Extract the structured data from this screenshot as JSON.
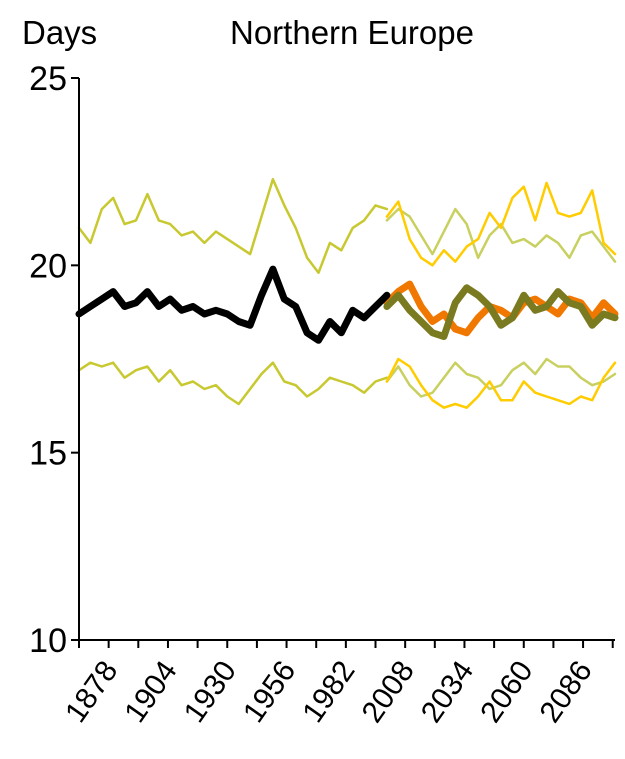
{
  "chart_data": {
    "type": "line",
    "title": "Northern Europe",
    "ylabel": "Days",
    "xlabel": "",
    "ylim": [
      10,
      25
    ],
    "xlim": [
      1865,
      2100
    ],
    "yticks": [
      10,
      15,
      20,
      25
    ],
    "xticks": [
      1878,
      1904,
      1930,
      1956,
      1982,
      2008,
      2034,
      2060,
      2086
    ],
    "grid": false,
    "legend": "none",
    "series": [
      {
        "role": "observed",
        "color": "#000000",
        "x": [
          1865,
          1870,
          1875,
          1880,
          1885,
          1890,
          1895,
          1900,
          1905,
          1910,
          1915,
          1920,
          1925,
          1930,
          1935,
          1940,
          1945,
          1950,
          1955,
          1960,
          1965,
          1970,
          1975,
          1980,
          1985,
          1990,
          1995,
          2000
        ],
        "y": [
          18.7,
          18.9,
          19.1,
          19.3,
          18.9,
          19.0,
          19.3,
          18.9,
          19.1,
          18.8,
          18.9,
          18.7,
          18.8,
          18.7,
          18.5,
          18.4,
          19.2,
          19.9,
          19.1,
          18.9,
          18.2,
          18.0,
          18.5,
          18.2,
          18.8,
          18.6,
          18.9,
          19.2
        ]
      },
      {
        "role": "observed-upper",
        "color": "#c8c830",
        "x": [
          1865,
          1870,
          1875,
          1880,
          1885,
          1890,
          1895,
          1900,
          1905,
          1910,
          1915,
          1920,
          1925,
          1930,
          1935,
          1940,
          1945,
          1950,
          1955,
          1960,
          1965,
          1970,
          1975,
          1980,
          1985,
          1990,
          1995,
          2000
        ],
        "y": [
          21.0,
          20.6,
          21.5,
          21.8,
          21.1,
          21.2,
          21.9,
          21.2,
          21.1,
          20.8,
          20.9,
          20.6,
          20.9,
          20.7,
          20.5,
          20.3,
          21.3,
          22.3,
          21.6,
          21.0,
          20.2,
          19.8,
          20.6,
          20.4,
          21.0,
          21.2,
          21.6,
          21.5
        ]
      },
      {
        "role": "observed-lower",
        "color": "#c8c830",
        "x": [
          1865,
          1870,
          1875,
          1880,
          1885,
          1890,
          1895,
          1900,
          1905,
          1910,
          1915,
          1920,
          1925,
          1930,
          1935,
          1940,
          1945,
          1950,
          1955,
          1960,
          1965,
          1970,
          1975,
          1980,
          1985,
          1990,
          1995,
          2000
        ],
        "y": [
          17.2,
          17.4,
          17.3,
          17.4,
          17.0,
          17.2,
          17.3,
          16.9,
          17.2,
          16.8,
          16.9,
          16.7,
          16.8,
          16.5,
          16.3,
          16.7,
          17.1,
          17.4,
          16.9,
          16.8,
          16.5,
          16.7,
          17.0,
          16.9,
          16.8,
          16.6,
          16.9,
          17.0
        ]
      },
      {
        "role": "scenario-a",
        "color": "#f07800",
        "x": [
          2000,
          2005,
          2010,
          2015,
          2020,
          2025,
          2030,
          2035,
          2040,
          2045,
          2050,
          2055,
          2060,
          2065,
          2070,
          2075,
          2080,
          2085,
          2090,
          2095,
          2100
        ],
        "y": [
          19.0,
          19.3,
          19.5,
          18.9,
          18.5,
          18.7,
          18.3,
          18.2,
          18.6,
          18.9,
          18.8,
          18.6,
          19.0,
          19.1,
          18.9,
          18.7,
          19.1,
          19.0,
          18.6,
          19.0,
          18.7
        ]
      },
      {
        "role": "scenario-b",
        "color": "#7a7a20",
        "x": [
          2000,
          2005,
          2010,
          2015,
          2020,
          2025,
          2030,
          2035,
          2040,
          2045,
          2050,
          2055,
          2060,
          2065,
          2070,
          2075,
          2080,
          2085,
          2090,
          2095,
          2100
        ],
        "y": [
          18.9,
          19.2,
          18.8,
          18.5,
          18.2,
          18.1,
          19.0,
          19.4,
          19.2,
          18.9,
          18.4,
          18.6,
          19.2,
          18.8,
          18.9,
          19.3,
          19.0,
          18.9,
          18.4,
          18.7,
          18.6
        ]
      },
      {
        "role": "scenario-a-upper",
        "color": "#ffcc00",
        "x": [
          2000,
          2005,
          2010,
          2015,
          2020,
          2025,
          2030,
          2035,
          2040,
          2045,
          2050,
          2055,
          2060,
          2065,
          2070,
          2075,
          2080,
          2085,
          2090,
          2095,
          2100
        ],
        "y": [
          21.3,
          21.7,
          20.7,
          20.2,
          20.0,
          20.4,
          20.1,
          20.5,
          20.7,
          21.4,
          21.0,
          21.8,
          22.1,
          21.2,
          22.2,
          21.4,
          21.3,
          21.4,
          22.0,
          20.6,
          20.3
        ]
      },
      {
        "role": "scenario-a-lower",
        "color": "#ffcc00",
        "x": [
          2000,
          2005,
          2010,
          2015,
          2020,
          2025,
          2030,
          2035,
          2040,
          2045,
          2050,
          2055,
          2060,
          2065,
          2070,
          2075,
          2080,
          2085,
          2090,
          2095,
          2100
        ],
        "y": [
          16.9,
          17.5,
          17.3,
          16.8,
          16.4,
          16.2,
          16.3,
          16.2,
          16.5,
          16.9,
          16.4,
          16.4,
          16.9,
          16.6,
          16.5,
          16.4,
          16.3,
          16.5,
          16.4,
          17.0,
          17.4
        ]
      },
      {
        "role": "scenario-b-upper",
        "color": "#c8d060",
        "x": [
          2000,
          2005,
          2010,
          2015,
          2020,
          2025,
          2030,
          2035,
          2040,
          2045,
          2050,
          2055,
          2060,
          2065,
          2070,
          2075,
          2080,
          2085,
          2090,
          2095,
          2100
        ],
        "y": [
          21.2,
          21.5,
          21.3,
          20.8,
          20.3,
          20.9,
          21.5,
          21.1,
          20.2,
          20.8,
          21.1,
          20.6,
          20.7,
          20.5,
          20.8,
          20.6,
          20.2,
          20.8,
          20.9,
          20.5,
          20.1
        ]
      },
      {
        "role": "scenario-b-lower",
        "color": "#c8d060",
        "x": [
          2000,
          2005,
          2010,
          2015,
          2020,
          2025,
          2030,
          2035,
          2040,
          2045,
          2050,
          2055,
          2060,
          2065,
          2070,
          2075,
          2080,
          2085,
          2090,
          2095,
          2100
        ],
        "y": [
          16.9,
          17.3,
          16.8,
          16.5,
          16.6,
          17.0,
          17.4,
          17.1,
          17.0,
          16.7,
          16.8,
          17.2,
          17.4,
          17.1,
          17.5,
          17.3,
          17.3,
          17.0,
          16.8,
          16.9,
          17.1
        ]
      }
    ]
  }
}
